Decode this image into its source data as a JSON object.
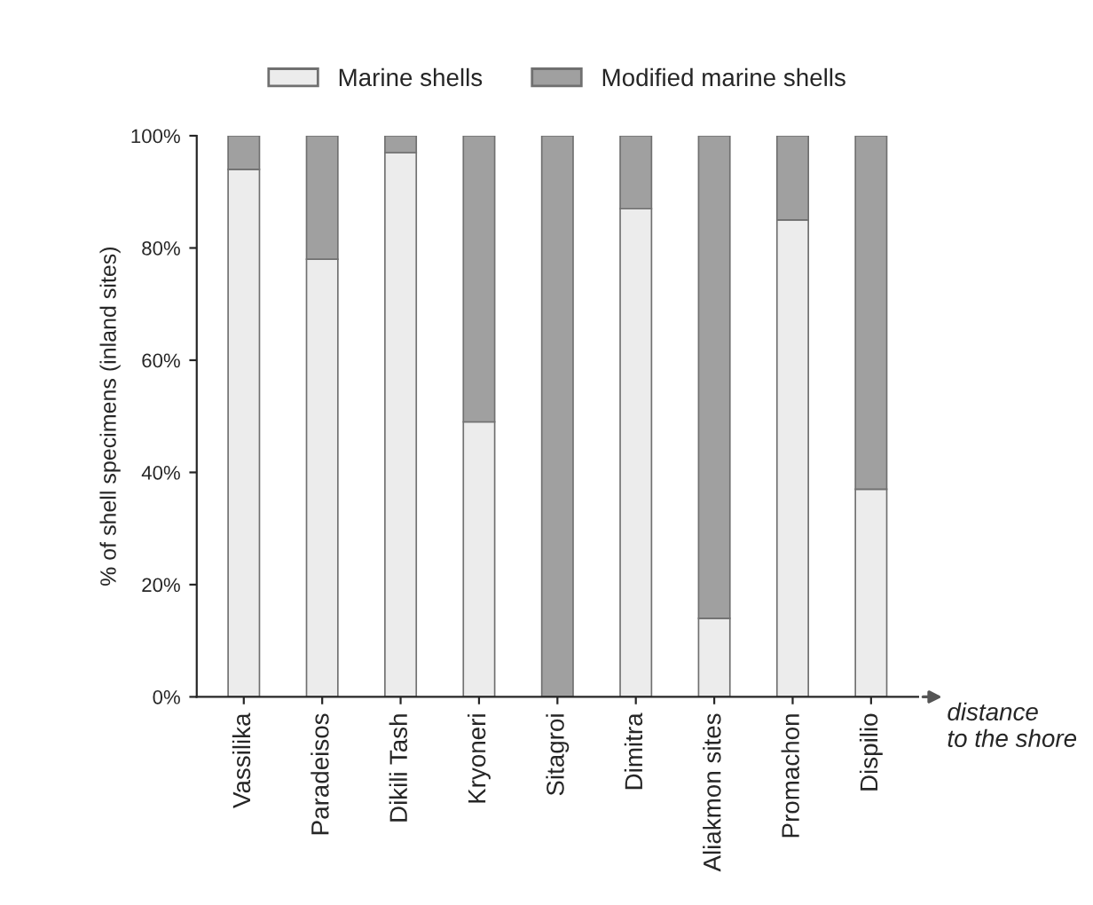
{
  "chart_data": {
    "type": "bar",
    "stacked": true,
    "ylabel": "% of shell specimens (inland sites)",
    "xlabel": "distance\nto the shore",
    "categories": [
      "Vassilika",
      "Paradeisos",
      "Dikili Tash",
      "Kryoneri",
      "Sitagroi",
      "Dimitra",
      "Aliakmon sites",
      "Promachon",
      "Dispilio"
    ],
    "series": [
      {
        "name": "Marine shells",
        "color": "#ececec",
        "values": [
          94,
          78,
          97,
          49,
          0,
          87,
          14,
          85,
          37
        ]
      },
      {
        "name": "Modified marine shells",
        "color": "#a0a0a0",
        "values": [
          6,
          22,
          3,
          51,
          100,
          13,
          86,
          15,
          63
        ]
      }
    ],
    "ylim": [
      0,
      100
    ],
    "yticks": [
      {
        "value": 0,
        "label": "0%"
      },
      {
        "value": 20,
        "label": "20%"
      },
      {
        "value": 40,
        "label": "40%"
      },
      {
        "value": 60,
        "label": "60%"
      },
      {
        "value": 80,
        "label": "80%"
      },
      {
        "value": 100,
        "label": "100%"
      }
    ],
    "legend": "top",
    "grid": false
  }
}
